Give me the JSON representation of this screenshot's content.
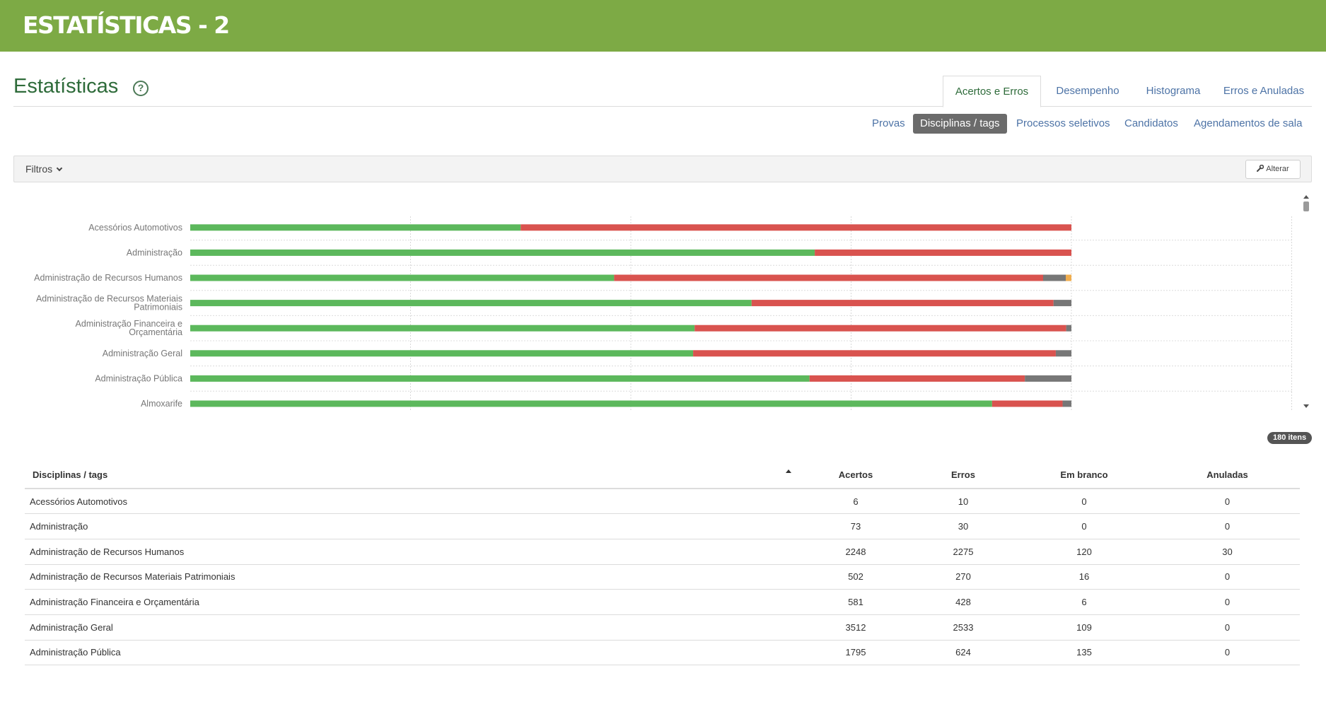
{
  "banner": {
    "title": "ESTATÍSTICAS - 2"
  },
  "page": {
    "title": "Estatísticas",
    "help_glyph": "?"
  },
  "tabs": [
    {
      "label": "Acertos e Erros",
      "active": true
    },
    {
      "label": "Desempenho",
      "active": false
    },
    {
      "label": "Histograma",
      "active": false
    },
    {
      "label": "Erros e Anuladas",
      "active": false
    }
  ],
  "subtabs": [
    {
      "label": "Provas",
      "active": false
    },
    {
      "label": "Disciplinas / tags",
      "active": true
    },
    {
      "label": "Processos seletivos",
      "active": false
    },
    {
      "label": "Candidatos",
      "active": false
    },
    {
      "label": "Agendamentos de sala",
      "active": false
    }
  ],
  "filters": {
    "label": "Filtros",
    "alterar_label": "Alterar"
  },
  "colors": {
    "banner": "#7daa45",
    "acertos": "#5cb85c",
    "erros": "#d9534f",
    "em_branco": "#777777",
    "anuladas": "#f0ad4e"
  },
  "chart_data": {
    "type": "bar",
    "orientation": "horizontal",
    "stacked": "percent",
    "categories": [
      "Acessórios Automotivos",
      "Administração",
      "Administração de Recursos Humanos",
      "Administração de Recursos Materiais Patrimoniais",
      "Administração Financeira e Orçamentária",
      "Administração Geral",
      "Administração Pública",
      "Almoxarife"
    ],
    "category_lines": [
      [
        "Acessórios Automotivos"
      ],
      [
        "Administração"
      ],
      [
        "Administração de Recursos Humanos"
      ],
      [
        "Administração de Recursos Materiais",
        "Patrimoniais"
      ],
      [
        "Administração Financeira e",
        "Orçamentária"
      ],
      [
        "Administração Geral"
      ],
      [
        "Administração Pública"
      ],
      [
        "Almoxarife"
      ]
    ],
    "series": [
      {
        "key": "acertos",
        "values": [
          6,
          73,
          2248,
          502,
          581,
          3512,
          1795,
          91
        ]
      },
      {
        "key": "erros",
        "values": [
          10,
          30,
          2275,
          270,
          428,
          2533,
          624,
          8
        ]
      },
      {
        "key": "em_branco",
        "values": [
          0,
          0,
          120,
          16,
          6,
          109,
          135,
          1
        ]
      },
      {
        "key": "anuladas",
        "values": [
          0,
          0,
          30,
          0,
          0,
          0,
          0,
          0
        ]
      }
    ],
    "xlim": [
      0,
      1.25
    ],
    "grid": true
  },
  "count_badge": "180 itens",
  "table": {
    "columns": [
      "Disciplinas / tags",
      "Acertos",
      "Erros",
      "Em branco",
      "Anuladas"
    ],
    "rows": [
      [
        "Acessórios Automotivos",
        "6",
        "10",
        "0",
        "0"
      ],
      [
        "Administração",
        "73",
        "30",
        "0",
        "0"
      ],
      [
        "Administração de Recursos Humanos",
        "2248",
        "2275",
        "120",
        "30"
      ],
      [
        "Administração de Recursos Materiais Patrimoniais",
        "502",
        "270",
        "16",
        "0"
      ],
      [
        "Administração Financeira e Orçamentária",
        "581",
        "428",
        "6",
        "0"
      ],
      [
        "Administração Geral",
        "3512",
        "2533",
        "109",
        "0"
      ],
      [
        "Administração Pública",
        "1795",
        "624",
        "135",
        "0"
      ]
    ]
  }
}
